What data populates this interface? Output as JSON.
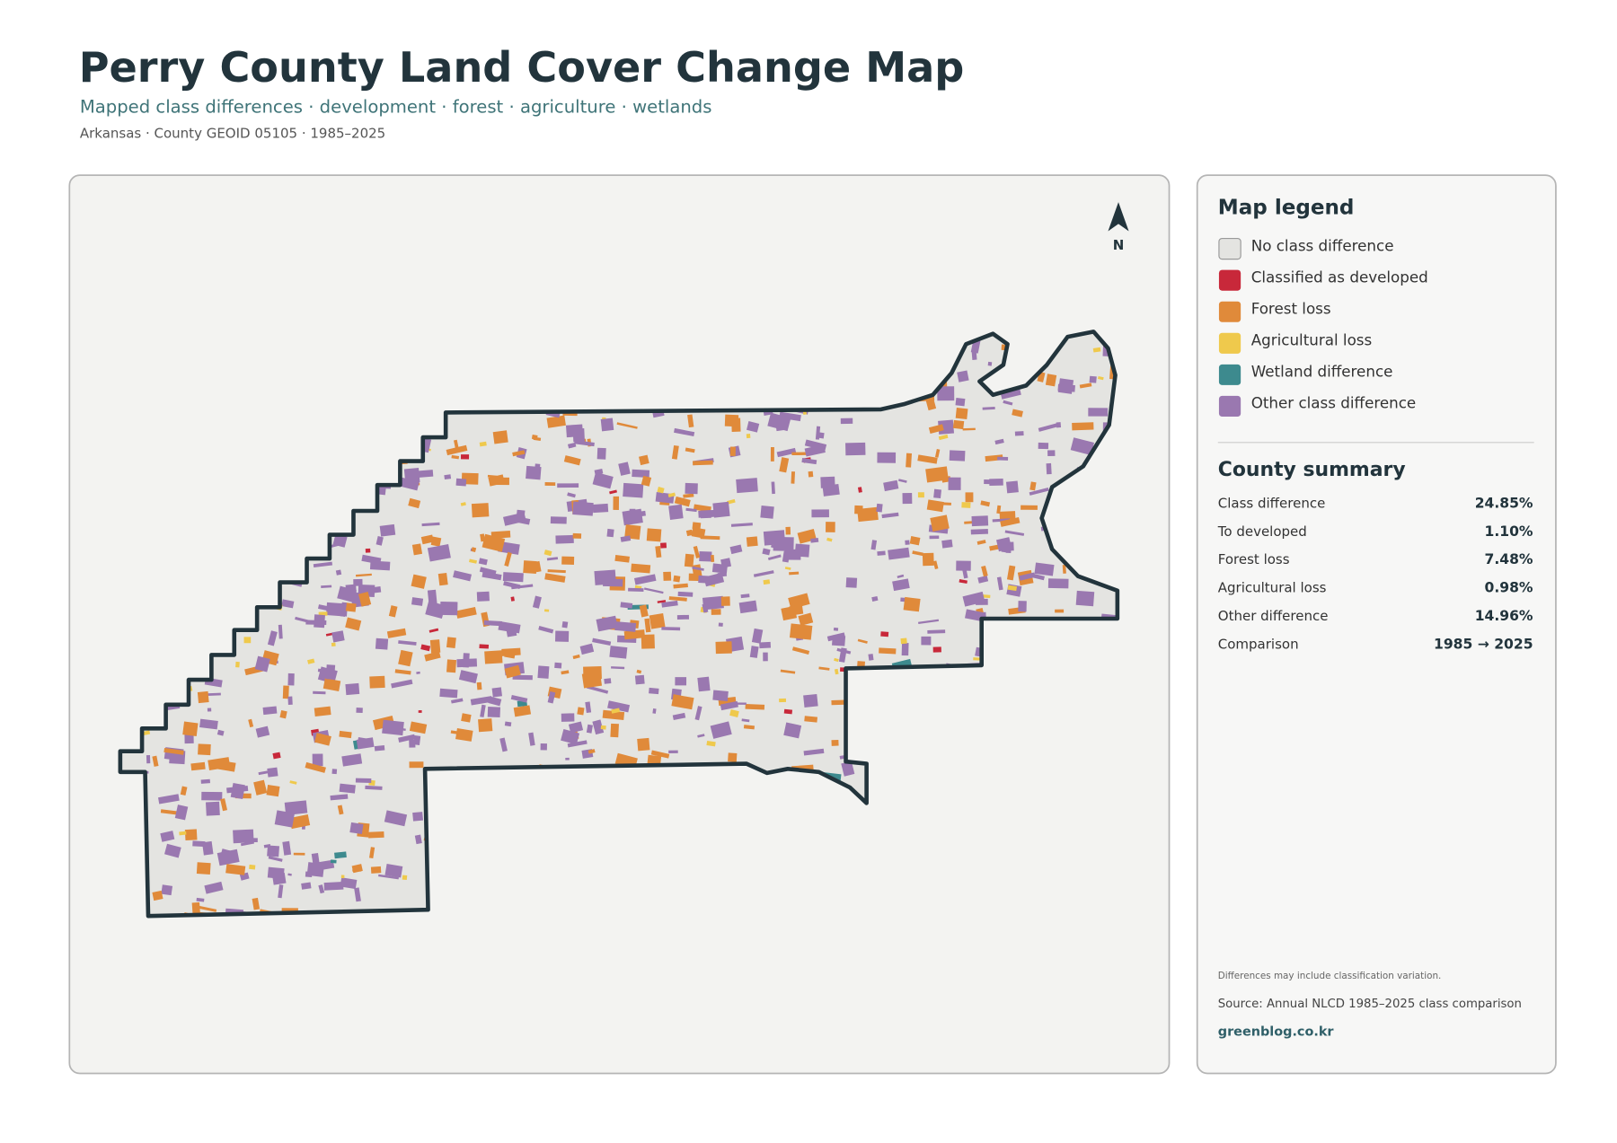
{
  "header": {
    "title": "Perry County Land Cover Change Map",
    "subtitle": "Mapped class differences · development · forest · agriculture · wetlands",
    "meta": "Arkansas · County GEOID 05105 · 1985–2025"
  },
  "map": {
    "north": "N"
  },
  "legend": {
    "title": "Map legend",
    "items": [
      {
        "label": "No class difference",
        "color": "#e4e4e1"
      },
      {
        "label": "Classified as developed",
        "color": "#c8283a"
      },
      {
        "label": "Forest loss",
        "color": "#e08a3a"
      },
      {
        "label": "Agricultural loss",
        "color": "#efc94c"
      },
      {
        "label": "Wetland difference",
        "color": "#3d8a8e"
      },
      {
        "label": "Other class difference",
        "color": "#9a78b0"
      }
    ]
  },
  "summary": {
    "title": "County summary",
    "rows": [
      [
        "Class difference",
        "24.85%"
      ],
      [
        "To developed",
        "1.10%"
      ],
      [
        "Forest loss",
        "7.48%"
      ],
      [
        "Agricultural loss",
        "0.98%"
      ],
      [
        "Other difference",
        "14.96%"
      ],
      [
        "Comparison",
        "1985 → 2025"
      ]
    ]
  },
  "notes": {
    "caveat": "Differences may include classification variation.",
    "source": "Source: Annual NLCD 1985–2025 class comparison",
    "site": "greenblog.co.kr"
  }
}
